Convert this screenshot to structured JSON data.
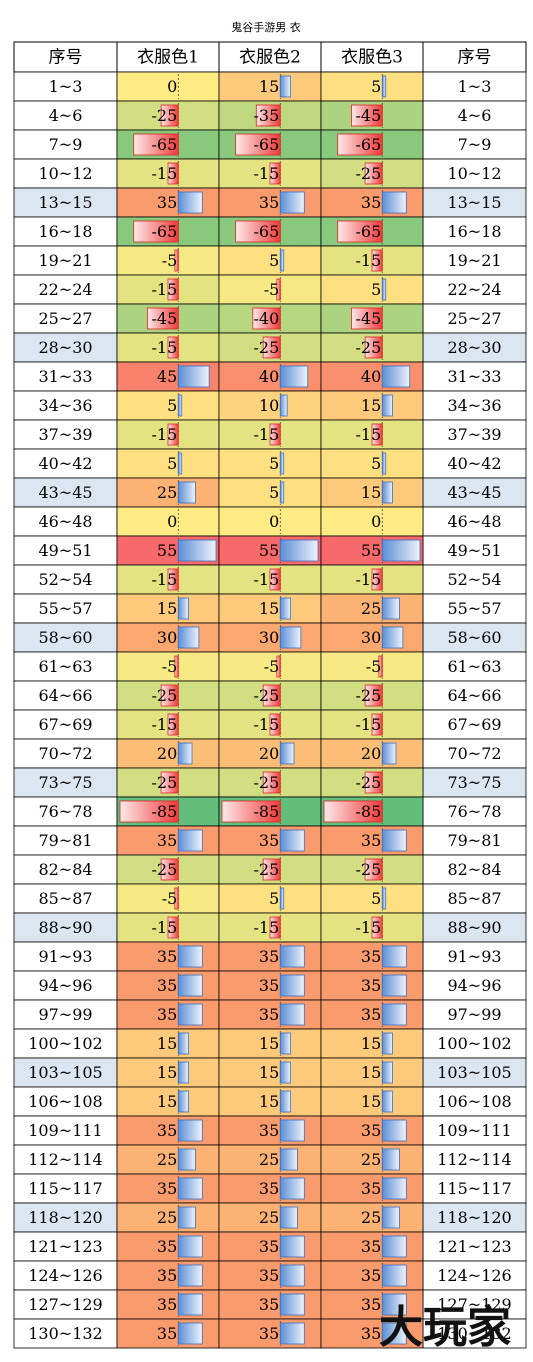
{
  "title": "鬼谷手游男 衣",
  "watermark": "大玩家",
  "table": {
    "header": [
      "序号",
      "衣服色1",
      "衣服色2",
      "衣服色3",
      "序号"
    ],
    "rows": [
      [
        "1~3",
        0,
        15,
        5,
        "1~3"
      ],
      [
        "4~6",
        -25,
        -35,
        -45,
        "4~6"
      ],
      [
        "7~9",
        -65,
        -65,
        -65,
        "7~9"
      ],
      [
        "10~12",
        -15,
        -15,
        -25,
        "10~12"
      ],
      [
        "13~15",
        35,
        35,
        35,
        "13~15"
      ],
      [
        "16~18",
        -65,
        -65,
        -65,
        "16~18"
      ],
      [
        "19~21",
        -5,
        5,
        -15,
        "19~21"
      ],
      [
        "22~24",
        -15,
        -5,
        5,
        "22~24"
      ],
      [
        "25~27",
        -45,
        -40,
        -45,
        "25~27"
      ],
      [
        "28~30",
        -15,
        -25,
        -25,
        "28~30"
      ],
      [
        "31~33",
        45,
        40,
        40,
        "31~33"
      ],
      [
        "34~36",
        5,
        10,
        15,
        "34~36"
      ],
      [
        "37~39",
        -15,
        -15,
        -15,
        "37~39"
      ],
      [
        "40~42",
        5,
        5,
        5,
        "40~42"
      ],
      [
        "43~45",
        25,
        5,
        15,
        "43~45"
      ],
      [
        "46~48",
        0,
        0,
        0,
        "46~48"
      ],
      [
        "49~51",
        55,
        55,
        55,
        "49~51"
      ],
      [
        "52~54",
        -15,
        -15,
        -15,
        "52~54"
      ],
      [
        "55~57",
        15,
        15,
        25,
        "55~57"
      ],
      [
        "58~60",
        30,
        30,
        30,
        "58~60"
      ],
      [
        "61~63",
        -5,
        -5,
        -5,
        "61~63"
      ],
      [
        "64~66",
        -25,
        -25,
        -25,
        "64~66"
      ],
      [
        "67~69",
        -15,
        -15,
        -15,
        "67~69"
      ],
      [
        "70~72",
        20,
        20,
        20,
        "70~72"
      ],
      [
        "73~75",
        -25,
        -25,
        -25,
        "73~75"
      ],
      [
        "76~78",
        -85,
        -85,
        -85,
        "76~78"
      ],
      [
        "79~81",
        35,
        35,
        35,
        "79~81"
      ],
      [
        "82~84",
        -25,
        -25,
        -25,
        "82~84"
      ],
      [
        "85~87",
        -5,
        5,
        5,
        "85~87"
      ],
      [
        "88~90",
        -15,
        -15,
        -15,
        "88~90"
      ],
      [
        "91~93",
        35,
        35,
        35,
        "91~93"
      ],
      [
        "94~96",
        35,
        35,
        35,
        "94~96"
      ],
      [
        "97~99",
        35,
        35,
        35,
        "97~99"
      ],
      [
        "100~102",
        15,
        15,
        15,
        "100~102"
      ],
      [
        "103~105",
        15,
        15,
        15,
        "103~105"
      ],
      [
        "106~108",
        15,
        15,
        15,
        "106~108"
      ],
      [
        "109~111",
        35,
        35,
        35,
        "109~111"
      ],
      [
        "112~114",
        25,
        25,
        25,
        "112~114"
      ],
      [
        "115~117",
        35,
        35,
        35,
        "115~117"
      ],
      [
        "118~120",
        25,
        25,
        25,
        "118~120"
      ],
      [
        "121~123",
        35,
        35,
        35,
        "121~123"
      ],
      [
        "124~126",
        35,
        35,
        35,
        "124~126"
      ],
      [
        "127~129",
        35,
        35,
        35,
        "127~129"
      ],
      [
        "130~132",
        35,
        35,
        35,
        "130~132"
      ]
    ]
  }
}
